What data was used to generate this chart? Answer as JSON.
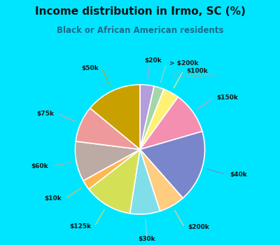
{
  "title": "Income distribution in Irmo, SC (%)",
  "subtitle": "Black or African American residents",
  "bg_cyan": "#00e5ff",
  "bg_chart": "#e0f2e9",
  "slices": [
    {
      "label": "$20k",
      "value": 3.5,
      "color": "#b39ddb"
    },
    {
      "label": "> $200k",
      "value": 2.5,
      "color": "#a5d6a7"
    },
    {
      "label": "$100k",
      "value": 4.0,
      "color": "#fff176"
    },
    {
      "label": "$150k",
      "value": 10.5,
      "color": "#f48fb1"
    },
    {
      "label": "$40k",
      "value": 18.0,
      "color": "#7986cb"
    },
    {
      "label": "$200k",
      "value": 6.5,
      "color": "#ffcc80"
    },
    {
      "label": "$30k",
      "value": 7.5,
      "color": "#80deea"
    },
    {
      "label": "$125k",
      "value": 12.0,
      "color": "#d4e157"
    },
    {
      "label": "$10k",
      "value": 2.5,
      "color": "#ffb74d"
    },
    {
      "label": "$60k",
      "value": 10.0,
      "color": "#bcaaa4"
    },
    {
      "label": "$75k",
      "value": 9.0,
      "color": "#ef9a9a"
    },
    {
      "label": "$50k",
      "value": 14.0,
      "color": "#c8a000"
    }
  ]
}
